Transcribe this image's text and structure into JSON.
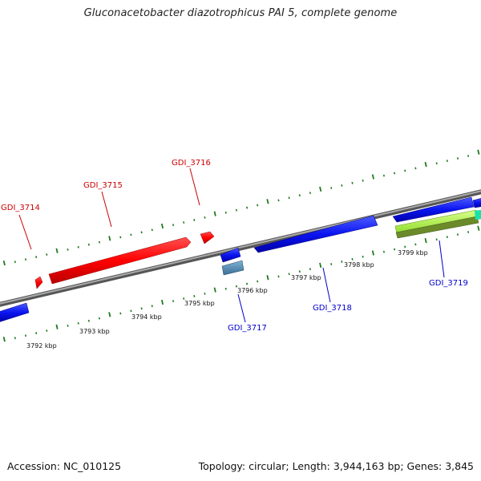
{
  "title": "Gluconacetobacter diazotrophicus PAI 5, complete genome",
  "footer": {
    "accession": "Accession: NC_010125",
    "summary": "Topology: circular; Length: 3,944,163 bp; Genes: 3,845"
  },
  "colors": {
    "forward_gene": "#ff0000",
    "reverse_gene": "#0000ff",
    "tick": "#1f7a1f",
    "backbone": "#888888"
  },
  "scale_labels": [
    "3792 kbp",
    "3793 kbp",
    "3794 kbp",
    "3795 kbp",
    "3796 kbp",
    "3797 kbp",
    "3798 kbp",
    "3799 kbp"
  ],
  "gene_labels": [
    {
      "text": "GDI_3714",
      "strand": "forward"
    },
    {
      "text": "GDI_3715",
      "strand": "forward"
    },
    {
      "text": "GDI_3716",
      "strand": "forward"
    },
    {
      "text": "GDI_3717",
      "strand": "reverse"
    },
    {
      "text": "GDI_3718",
      "strand": "reverse"
    },
    {
      "text": "GDI_3719",
      "strand": "reverse"
    }
  ]
}
